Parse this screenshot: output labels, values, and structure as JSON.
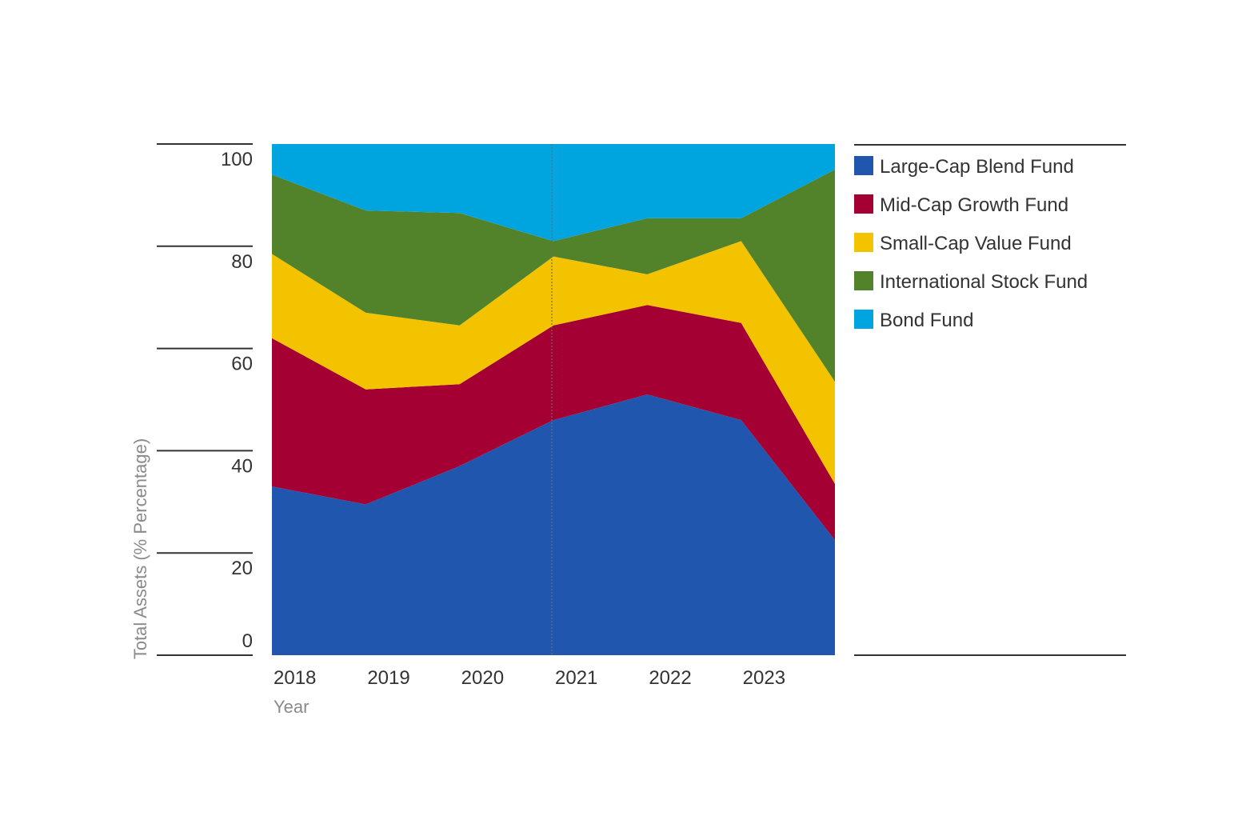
{
  "chart_data": {
    "type": "area",
    "stacked": true,
    "x": [
      "2018",
      "2019",
      "2020",
      "2021",
      "2022",
      "2023",
      ""
    ],
    "x_tick_labels": [
      "2018",
      "2019",
      "2020",
      "2021",
      "2022",
      "2023"
    ],
    "xlabel": "Year",
    "ylabel": "Total Assets (% Percentage)",
    "ylim": [
      0,
      100
    ],
    "y_ticks": [
      0,
      20,
      40,
      60,
      80,
      100
    ],
    "reference_line_x": "2021",
    "grid": false,
    "legend_position": "right",
    "series": [
      {
        "name": "Large-Cap Blend Fund",
        "color": "#2056ae",
        "values": [
          33,
          29.5,
          37,
          46,
          51,
          46,
          22.5
        ]
      },
      {
        "name": "Mid-Cap Growth Fund",
        "color": "#a50034",
        "values": [
          29,
          22.5,
          16,
          18.5,
          17.5,
          19,
          11
        ]
      },
      {
        "name": "Small-Cap Value Fund",
        "color": "#f3c300",
        "values": [
          16.5,
          15,
          11.5,
          13.5,
          6,
          16,
          20
        ]
      },
      {
        "name": "International Stock Fund",
        "color": "#52832a",
        "values": [
          15.5,
          20,
          22,
          3,
          11,
          4.5,
          41.5
        ]
      },
      {
        "name": "Bond Fund",
        "color": "#00a5e0",
        "values": [
          6,
          13,
          13.5,
          19,
          14.5,
          14.5,
          5
        ]
      }
    ]
  }
}
